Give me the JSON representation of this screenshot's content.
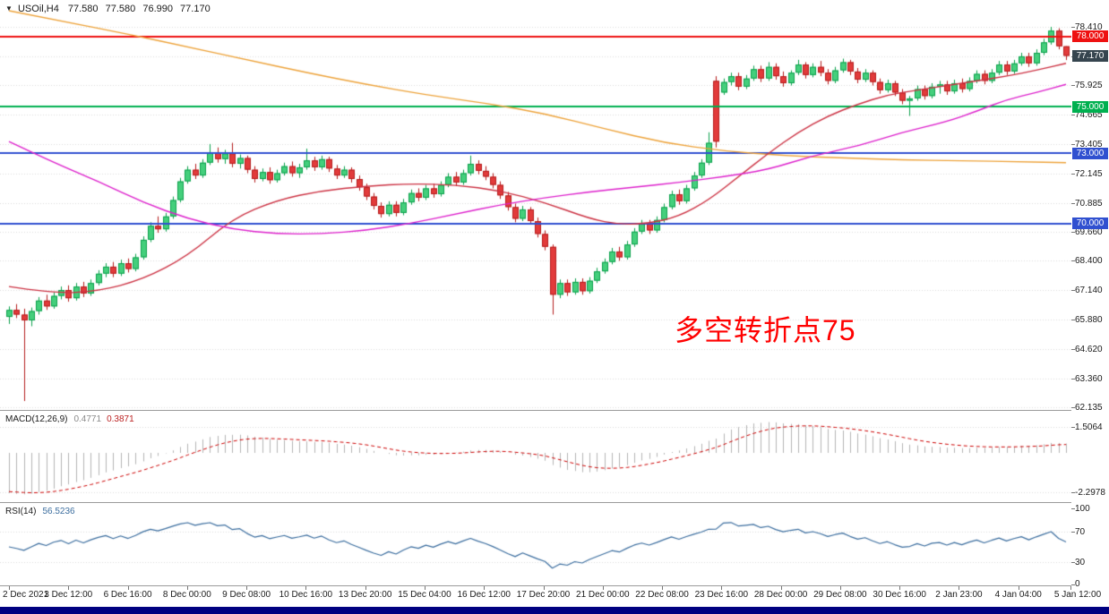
{
  "window": {
    "symbol_title": "USOil,H4",
    "dropdown_icon": "▼",
    "ohlc": {
      "open": "77.580",
      "high": "77.580",
      "low": "76.990",
      "close": "77.170"
    }
  },
  "annotation": {
    "text": "多空转折点75",
    "color": "#ff0000"
  },
  "colors": {
    "background": "#ffffff",
    "grid": "#dcdcdc",
    "axis_text": "#1a1a1a",
    "separator": "#9a9a9a",
    "up_fill": "#44cf7c",
    "up_border": "#0ca04c",
    "down_fill": "#e23b3b",
    "down_border": "#b51d1d",
    "ma_orange": "#eda33b",
    "ma_red": "#cc3344",
    "ma_magenta": "#dd22cc",
    "macd_hist": "#b4b4b4",
    "macd_signal": "#cc0000",
    "rsi_line": "#3c6e9f",
    "bottom_strip": "#000080"
  },
  "chart_data": {
    "type": "candlestick",
    "symbol": "USOil",
    "timeframe": "H4",
    "main": {
      "ylim": [
        62.02,
        79.56
      ],
      "price_ticks": [
        "78.410",
        "77.165",
        "75.925",
        "74.665",
        "73.405",
        "72.145",
        "70.885",
        "69.660",
        "68.400",
        "67.140",
        "65.880",
        "64.620",
        "63.360",
        "62.135"
      ],
      "level_lines": [
        {
          "price": 78.0,
          "label": "78.000",
          "color": "#ee1111",
          "width": 2
        },
        {
          "price": 75.0,
          "label": "75.000",
          "color": "#00b050",
          "width": 2
        },
        {
          "price": 73.0,
          "label": "73.000",
          "color": "#3050d0",
          "width": 2
        },
        {
          "price": 70.0,
          "label": "70.000",
          "color": "#3050d0",
          "width": 2
        }
      ],
      "current_price": {
        "value": 77.17,
        "label": "77.170",
        "color": "#36454f"
      },
      "candles": [
        [
          66.0,
          66.45,
          65.7,
          66.3
        ],
        [
          66.3,
          66.55,
          65.95,
          66.1
        ],
        [
          66.1,
          66.35,
          62.4,
          65.85
        ],
        [
          65.85,
          66.4,
          65.6,
          66.25
        ],
        [
          66.25,
          66.85,
          66.1,
          66.7
        ],
        [
          66.7,
          66.95,
          66.3,
          66.45
        ],
        [
          66.45,
          67.05,
          66.35,
          66.9
        ],
        [
          66.9,
          67.3,
          66.75,
          67.15
        ],
        [
          67.15,
          67.35,
          66.65,
          66.8
        ],
        [
          66.8,
          67.45,
          66.7,
          67.3
        ],
        [
          67.3,
          67.5,
          66.85,
          67.0
        ],
        [
          67.0,
          67.6,
          66.9,
          67.45
        ],
        [
          67.45,
          68.0,
          67.35,
          67.85
        ],
        [
          67.85,
          68.3,
          67.7,
          68.15
        ],
        [
          68.15,
          68.35,
          67.7,
          67.85
        ],
        [
          67.85,
          68.45,
          67.75,
          68.3
        ],
        [
          68.3,
          68.5,
          67.9,
          68.05
        ],
        [
          68.05,
          68.7,
          67.95,
          68.55
        ],
        [
          68.55,
          69.45,
          68.45,
          69.3
        ],
        [
          69.3,
          70.05,
          69.2,
          69.9
        ],
        [
          69.9,
          70.3,
          69.6,
          69.75
        ],
        [
          69.75,
          70.45,
          69.65,
          70.3
        ],
        [
          70.3,
          71.15,
          70.2,
          71.0
        ],
        [
          71.0,
          71.95,
          70.9,
          71.8
        ],
        [
          71.8,
          72.45,
          71.7,
          72.3
        ],
        [
          72.3,
          72.55,
          71.9,
          72.05
        ],
        [
          72.05,
          72.75,
          71.95,
          72.6
        ],
        [
          72.6,
          73.4,
          72.5,
          73.05
        ],
        [
          73.05,
          73.25,
          72.6,
          72.75
        ],
        [
          72.75,
          73.15,
          72.55,
          73.0
        ],
        [
          73.0,
          73.45,
          72.4,
          72.55
        ],
        [
          72.55,
          72.95,
          72.35,
          72.8
        ],
        [
          72.8,
          72.9,
          72.15,
          72.3
        ],
        [
          72.3,
          72.45,
          71.75,
          71.9
        ],
        [
          71.9,
          72.35,
          71.8,
          72.2
        ],
        [
          72.2,
          72.4,
          71.7,
          71.85
        ],
        [
          71.85,
          72.3,
          71.75,
          72.15
        ],
        [
          72.15,
          72.6,
          72.05,
          72.45
        ],
        [
          72.45,
          72.65,
          72.0,
          72.15
        ],
        [
          72.15,
          72.55,
          71.95,
          72.4
        ],
        [
          72.4,
          73.2,
          72.3,
          72.7
        ],
        [
          72.7,
          72.85,
          72.25,
          72.4
        ],
        [
          72.4,
          72.9,
          72.3,
          72.75
        ],
        [
          72.75,
          72.85,
          72.2,
          72.35
        ],
        [
          72.35,
          72.5,
          71.9,
          72.05
        ],
        [
          72.05,
          72.45,
          71.95,
          72.3
        ],
        [
          72.3,
          72.4,
          71.75,
          71.9
        ],
        [
          71.9,
          72.05,
          71.4,
          71.55
        ],
        [
          71.55,
          71.7,
          71.0,
          71.15
        ],
        [
          71.15,
          71.3,
          70.6,
          70.75
        ],
        [
          70.75,
          70.9,
          70.25,
          70.4
        ],
        [
          70.4,
          70.95,
          70.3,
          70.8
        ],
        [
          70.8,
          70.95,
          70.3,
          70.45
        ],
        [
          70.45,
          71.05,
          70.35,
          70.9
        ],
        [
          70.9,
          71.45,
          70.8,
          71.3
        ],
        [
          71.3,
          71.5,
          70.95,
          71.1
        ],
        [
          71.1,
          71.65,
          71.0,
          71.5
        ],
        [
          71.5,
          71.7,
          71.1,
          71.25
        ],
        [
          71.25,
          71.8,
          71.15,
          71.65
        ],
        [
          71.65,
          72.15,
          71.55,
          72.0
        ],
        [
          72.0,
          72.2,
          71.6,
          71.75
        ],
        [
          71.75,
          72.3,
          71.65,
          72.15
        ],
        [
          72.15,
          72.9,
          72.05,
          72.55
        ],
        [
          72.55,
          72.7,
          72.1,
          72.25
        ],
        [
          72.25,
          72.45,
          71.85,
          72.0
        ],
        [
          72.0,
          72.15,
          71.5,
          71.65
        ],
        [
          71.65,
          71.8,
          71.05,
          71.2
        ],
        [
          71.2,
          71.35,
          70.55,
          70.7
        ],
        [
          70.7,
          70.85,
          70.05,
          70.2
        ],
        [
          70.2,
          70.75,
          70.1,
          70.6
        ],
        [
          70.6,
          70.7,
          69.95,
          70.1
        ],
        [
          70.1,
          70.25,
          69.4,
          69.55
        ],
        [
          69.55,
          69.7,
          68.85,
          69.0
        ],
        [
          69.0,
          69.1,
          66.1,
          66.95
        ],
        [
          66.95,
          67.6,
          66.8,
          67.45
        ],
        [
          67.45,
          67.6,
          66.9,
          67.05
        ],
        [
          67.05,
          67.65,
          66.95,
          67.5
        ],
        [
          67.5,
          67.65,
          66.95,
          67.1
        ],
        [
          67.1,
          67.7,
          67.0,
          67.55
        ],
        [
          67.55,
          68.1,
          67.45,
          67.95
        ],
        [
          67.95,
          68.5,
          67.85,
          68.35
        ],
        [
          68.35,
          68.95,
          68.25,
          68.8
        ],
        [
          68.8,
          69.0,
          68.4,
          68.55
        ],
        [
          68.55,
          69.25,
          68.45,
          69.1
        ],
        [
          69.1,
          69.8,
          69.0,
          69.65
        ],
        [
          69.65,
          70.15,
          69.55,
          70.0
        ],
        [
          70.0,
          70.15,
          69.55,
          69.7
        ],
        [
          69.7,
          70.3,
          69.6,
          70.15
        ],
        [
          70.15,
          70.85,
          70.05,
          70.7
        ],
        [
          70.7,
          71.4,
          70.6,
          71.25
        ],
        [
          71.25,
          71.45,
          70.8,
          70.95
        ],
        [
          70.95,
          71.65,
          70.85,
          71.5
        ],
        [
          71.5,
          72.2,
          71.4,
          72.05
        ],
        [
          72.05,
          72.75,
          71.95,
          72.6
        ],
        [
          72.6,
          73.9,
          72.5,
          73.45
        ],
        [
          76.1,
          76.3,
          73.25,
          73.5
        ],
        [
          75.6,
          76.2,
          75.5,
          76.05
        ],
        [
          76.05,
          76.45,
          75.9,
          76.3
        ],
        [
          76.3,
          76.45,
          75.7,
          75.85
        ],
        [
          75.85,
          76.35,
          75.75,
          76.2
        ],
        [
          76.2,
          76.75,
          76.1,
          76.6
        ],
        [
          76.6,
          76.75,
          76.05,
          76.2
        ],
        [
          76.2,
          76.9,
          76.1,
          76.7
        ],
        [
          76.7,
          76.85,
          76.15,
          76.3
        ],
        [
          76.3,
          76.5,
          75.85,
          76.0
        ],
        [
          76.0,
          76.55,
          75.9,
          76.45
        ],
        [
          76.45,
          77.0,
          76.35,
          76.8
        ],
        [
          76.8,
          76.9,
          76.2,
          76.35
        ],
        [
          76.35,
          76.85,
          76.25,
          76.7
        ],
        [
          76.7,
          76.95,
          76.3,
          76.45
        ],
        [
          76.45,
          76.6,
          75.95,
          76.1
        ],
        [
          76.1,
          76.7,
          76.0,
          76.55
        ],
        [
          76.55,
          77.05,
          76.45,
          76.9
        ],
        [
          76.9,
          77.0,
          76.35,
          76.5
        ],
        [
          76.5,
          76.65,
          76.0,
          76.15
        ],
        [
          76.15,
          76.6,
          76.05,
          76.45
        ],
        [
          76.45,
          76.55,
          75.9,
          76.05
        ],
        [
          76.05,
          76.2,
          75.55,
          75.7
        ],
        [
          75.7,
          76.15,
          75.6,
          76.0
        ],
        [
          76.0,
          76.1,
          75.45,
          75.6
        ],
        [
          75.6,
          75.75,
          75.1,
          75.25
        ],
        [
          75.25,
          75.45,
          74.6,
          75.35
        ],
        [
          75.35,
          75.9,
          75.25,
          75.75
        ],
        [
          75.75,
          75.9,
          75.3,
          75.45
        ],
        [
          75.45,
          76.0,
          75.35,
          75.85
        ],
        [
          75.85,
          76.1,
          75.55,
          75.95
        ],
        [
          75.95,
          76.1,
          75.5,
          75.65
        ],
        [
          75.65,
          76.15,
          75.55,
          76.0
        ],
        [
          76.0,
          76.2,
          75.6,
          75.75
        ],
        [
          75.75,
          76.25,
          75.65,
          76.1
        ],
        [
          76.1,
          76.55,
          76.0,
          76.4
        ],
        [
          76.4,
          76.55,
          75.95,
          76.1
        ],
        [
          76.1,
          76.6,
          76.0,
          76.45
        ],
        [
          76.45,
          76.95,
          76.35,
          76.8
        ],
        [
          76.8,
          76.95,
          76.35,
          76.5
        ],
        [
          76.5,
          77.0,
          76.4,
          76.85
        ],
        [
          76.85,
          77.3,
          76.75,
          77.15
        ],
        [
          77.15,
          77.3,
          76.7,
          76.85
        ],
        [
          76.85,
          77.45,
          76.75,
          77.3
        ],
        [
          77.3,
          77.9,
          77.2,
          77.75
        ],
        [
          77.75,
          78.41,
          77.65,
          78.25
        ],
        [
          78.25,
          78.35,
          77.45,
          77.58
        ],
        [
          77.58,
          77.58,
          76.99,
          77.17
        ]
      ],
      "ma_orange": [
        [
          0,
          79.1
        ],
        [
          8,
          78.6
        ],
        [
          16,
          78.1
        ],
        [
          24,
          77.55
        ],
        [
          32,
          77.0
        ],
        [
          40,
          76.45
        ],
        [
          48,
          75.95
        ],
        [
          56,
          75.5
        ],
        [
          64,
          75.15
        ],
        [
          72,
          74.7
        ],
        [
          80,
          74.05
        ],
        [
          88,
          73.45
        ],
        [
          96,
          73.1
        ],
        [
          104,
          72.9
        ],
        [
          112,
          72.8
        ],
        [
          120,
          72.72
        ],
        [
          128,
          72.68
        ],
        [
          136,
          72.64
        ],
        [
          142,
          72.6
        ]
      ],
      "ma_red": [
        [
          0,
          67.3
        ],
        [
          6,
          67.0
        ],
        [
          12,
          67.1
        ],
        [
          18,
          67.6
        ],
        [
          24,
          68.6
        ],
        [
          30,
          70.2
        ],
        [
          36,
          71.0
        ],
        [
          42,
          71.4
        ],
        [
          48,
          71.6
        ],
        [
          54,
          71.7
        ],
        [
          60,
          71.65
        ],
        [
          66,
          71.4
        ],
        [
          72,
          70.9
        ],
        [
          78,
          70.2
        ],
        [
          82,
          69.95
        ],
        [
          86,
          70.0
        ],
        [
          90,
          70.3
        ],
        [
          94,
          71.0
        ],
        [
          98,
          72.0
        ],
        [
          102,
          73.0
        ],
        [
          106,
          73.9
        ],
        [
          110,
          74.6
        ],
        [
          114,
          75.1
        ],
        [
          118,
          75.5
        ],
        [
          122,
          75.7
        ],
        [
          126,
          75.9
        ],
        [
          130,
          76.1
        ],
        [
          134,
          76.3
        ],
        [
          138,
          76.55
        ],
        [
          142,
          76.85
        ]
      ],
      "ma_magenta": [
        [
          0,
          73.5
        ],
        [
          6,
          72.6
        ],
        [
          12,
          71.8
        ],
        [
          18,
          70.9
        ],
        [
          24,
          70.2
        ],
        [
          30,
          69.75
        ],
        [
          36,
          69.55
        ],
        [
          42,
          69.55
        ],
        [
          48,
          69.7
        ],
        [
          54,
          70.0
        ],
        [
          60,
          70.4
        ],
        [
          66,
          70.8
        ],
        [
          72,
          71.1
        ],
        [
          78,
          71.35
        ],
        [
          84,
          71.55
        ],
        [
          90,
          71.75
        ],
        [
          96,
          72.0
        ],
        [
          102,
          72.3
        ],
        [
          108,
          72.9
        ],
        [
          114,
          73.3
        ],
        [
          120,
          73.9
        ],
        [
          126,
          74.35
        ],
        [
          130,
          74.8
        ],
        [
          134,
          75.3
        ],
        [
          138,
          75.6
        ],
        [
          142,
          75.95
        ]
      ]
    },
    "macd": {
      "label": "MACD(12,26,9)",
      "value_main": "0.4771",
      "value_signal": "0.3871",
      "axis_ticks": [
        "1.5064",
        "-2.2978"
      ],
      "params": {
        "fast": 12,
        "slow": 26,
        "signal": 9
      },
      "seeds": {
        "ema_fast": 69.3,
        "ema_slow": 71.6,
        "signal": -2.25
      }
    },
    "rsi": {
      "label": "RSI(14)",
      "value": "56.5236",
      "axis_ticks": [
        100,
        70,
        30,
        0
      ],
      "levels": [
        70,
        30
      ],
      "period": 14,
      "seed_avg": 0.18
    },
    "time_labels": [
      "2 Dec 2021",
      "3 Dec 12:00",
      "6 Dec 16:00",
      "8 Dec 00:00",
      "9 Dec 08:00",
      "10 Dec 16:00",
      "13 Dec 20:00",
      "15 Dec 04:00",
      "16 Dec 12:00",
      "17 Dec 20:00",
      "21 Dec 00:00",
      "22 Dec 08:00",
      "23 Dec 16:00",
      "28 Dec 00:00",
      "29 Dec 08:00",
      "30 Dec 16:00",
      "2 Jan 23:00",
      "4 Jan 04:00",
      "5 Jan 12:00"
    ]
  }
}
